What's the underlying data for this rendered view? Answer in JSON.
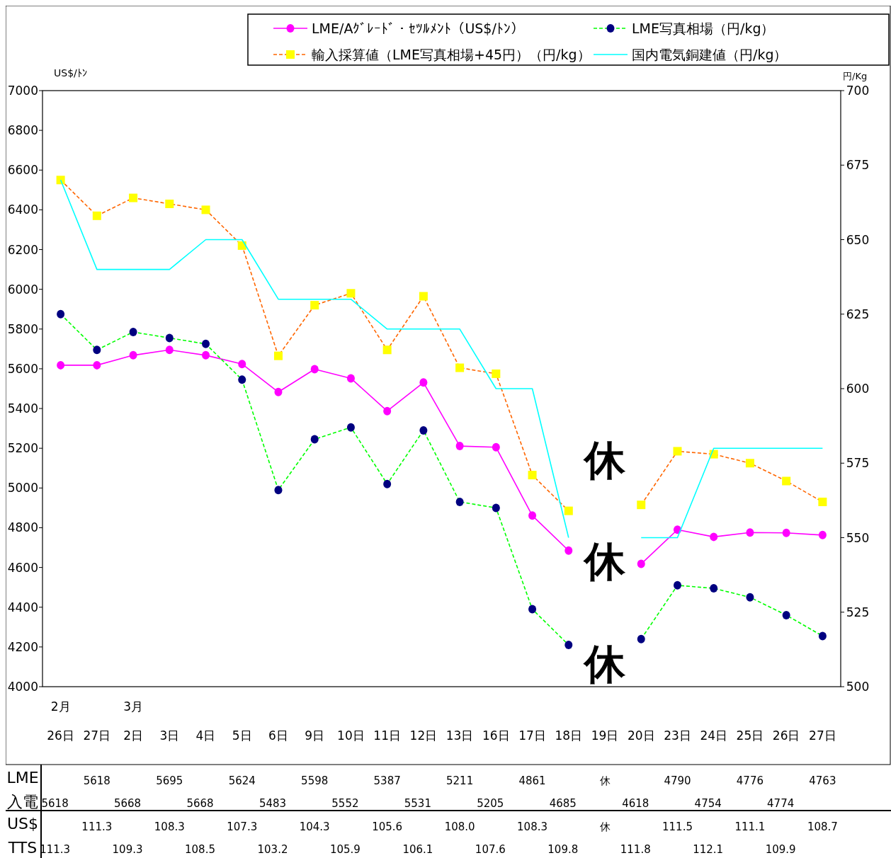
{
  "chart_data": {
    "type": "line",
    "categories": [
      "26日",
      "27日",
      "2日",
      "3日",
      "4日",
      "5日",
      "6日",
      "9日",
      "10日",
      "11日",
      "12日",
      "13日",
      "16日",
      "17日",
      "18日",
      "19日",
      "20日",
      "23日",
      "24日",
      "25日",
      "26日",
      "27日"
    ],
    "ylabel": "US$/ﾄﾝ",
    "y2label": "円/Kg",
    "ylim": [
      4000,
      7000
    ],
    "yticks": [
      4000,
      4200,
      4400,
      4600,
      4800,
      5000,
      5200,
      5400,
      5600,
      5800,
      6000,
      6200,
      6400,
      6600,
      6800,
      7000
    ],
    "y2lim": [
      500,
      700
    ],
    "y2ticks": [
      500,
      525,
      550,
      575,
      600,
      625,
      650,
      675,
      700
    ],
    "legend": "top",
    "grid": false,
    "series": [
      {
        "name": "LME/Aｸﾞﾚｰﾄﾞ・ｾﾂﾙﾒﾝﾄ（US$/ﾄﾝ）",
        "color": "#ff00ff",
        "marker": "circle",
        "line_style": "solid",
        "values": [
          5618,
          5618,
          5668,
          5695,
          5668,
          5624,
          5483,
          5598,
          5552,
          5387,
          5531,
          5211,
          5205,
          4861,
          4685,
          null,
          4618,
          4790,
          4754,
          4776,
          4774,
          4763
        ]
      },
      {
        "name": "LME写真相場（円/kg）",
        "color": "#00ff00",
        "colors": [
          "#000080",
          "#000080",
          "#000080",
          "#000080",
          "#000080",
          "#000080",
          "#000080",
          "#000080",
          "#000080",
          "#000080",
          "#000080",
          "#000080",
          "#000080",
          "#000080",
          "#000080",
          null,
          "#000080",
          "#000080",
          "#000080",
          "#000080",
          "#000080",
          "#000080"
        ],
        "marker": "circle",
        "line_style": "dashed",
        "axis": "y2",
        "values": [
          625,
          613,
          619,
          617,
          615,
          603,
          566,
          583,
          587,
          568,
          586,
          562,
          560,
          526,
          514,
          null,
          516,
          534,
          533,
          530,
          524,
          517
        ]
      },
      {
        "name": "輸入採算値（LME写真相場+45円）（円/kg）",
        "color": "#ff6600",
        "colors": [
          "#ffff00",
          "#ffff00",
          "#ffff00",
          "#ffff00",
          "#ffff00",
          "#ffff00",
          "#ffff00",
          "#ffff00",
          "#ffff00",
          "#ffff00",
          "#ffff00",
          "#ffff00",
          "#ffff00",
          "#ffff00",
          "#ffff00",
          null,
          "#ffff00",
          "#ffff00",
          "#ffff00",
          "#ffff00",
          "#ffff00",
          "#ffff00"
        ],
        "marker": "square",
        "line_style": "dashed",
        "axis": "y2",
        "values": [
          670,
          658,
          664,
          662,
          660,
          648,
          611,
          628,
          632,
          613,
          631,
          607,
          605,
          571,
          559,
          null,
          561,
          579,
          578,
          575,
          569,
          562
        ]
      },
      {
        "name": "国内電気銅建値（円/kg）",
        "color": "#00ffff",
        "marker": "none",
        "line_style": "solid",
        "axis": "y2",
        "values": [
          670,
          640,
          640,
          640,
          650,
          650,
          630,
          630,
          630,
          620,
          620,
          620,
          600,
          600,
          550,
          null,
          550,
          550,
          580,
          580,
          580,
          580
        ]
      }
    ],
    "annotations": [
      "2月",
      "3月",
      "休",
      "休",
      "休",
      "LME",
      "入電",
      "5618",
      "5618",
      "5668",
      "5695",
      "5668",
      "5624",
      "5483",
      "5598",
      "5552",
      "5387",
      "5531",
      "5211",
      "5205",
      "4861",
      "4685",
      "休",
      "4618",
      "4790",
      "4754",
      "4776",
      "4774",
      "4763",
      "US$",
      "TTS",
      "111.3",
      "111.3",
      "109.3",
      "108.3",
      "108.5",
      "107.3",
      "103.2",
      "104.3",
      "105.9",
      "105.6",
      "106.1",
      "108.0",
      "107.6",
      "108.3",
      "109.8",
      "休",
      "111.8",
      "111.5",
      "112.1",
      "111.1",
      "109.9",
      "108.7"
    ]
  }
}
